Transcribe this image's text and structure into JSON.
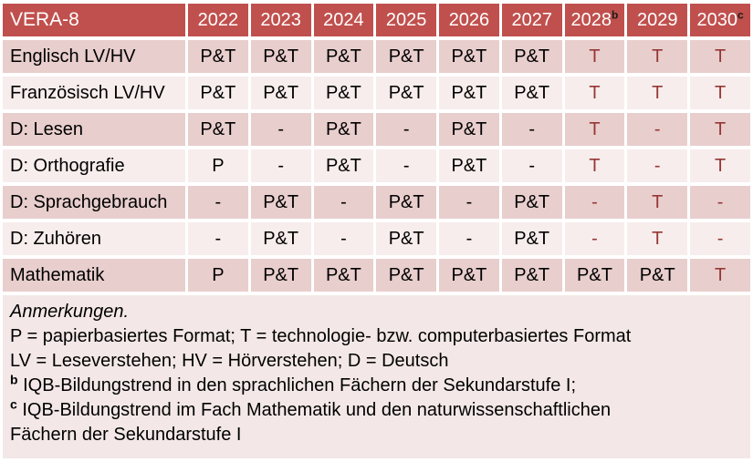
{
  "colors": {
    "header_bg": "#C0504D",
    "header_text": "#FFFFFF",
    "band_dark": "#E8CECD",
    "band_light": "#F7EDEC",
    "notes_bg": "#F3E8E7",
    "accent_text": "#953735",
    "body_text": "#000000"
  },
  "table": {
    "header": {
      "title": "VERA-8",
      "years": [
        {
          "label": "2022",
          "sup": ""
        },
        {
          "label": "2023",
          "sup": ""
        },
        {
          "label": "2024",
          "sup": ""
        },
        {
          "label": "2025",
          "sup": ""
        },
        {
          "label": "2026",
          "sup": ""
        },
        {
          "label": "2027",
          "sup": ""
        },
        {
          "label": "2028",
          "sup": "b"
        },
        {
          "label": "2029",
          "sup": ""
        },
        {
          "label": "2030",
          "sup": "c"
        }
      ]
    },
    "rows": [
      {
        "label": "Englisch LV/HV",
        "cells": [
          {
            "v": "P&T",
            "red": false
          },
          {
            "v": "P&T",
            "red": false
          },
          {
            "v": "P&T",
            "red": false
          },
          {
            "v": "P&T",
            "red": false
          },
          {
            "v": "P&T",
            "red": false
          },
          {
            "v": "P&T",
            "red": false
          },
          {
            "v": "T",
            "red": true
          },
          {
            "v": "T",
            "red": true
          },
          {
            "v": "T",
            "red": true
          }
        ]
      },
      {
        "label": "Französisch LV/HV",
        "cells": [
          {
            "v": "P&T",
            "red": false
          },
          {
            "v": "P&T",
            "red": false
          },
          {
            "v": "P&T",
            "red": false
          },
          {
            "v": "P&T",
            "red": false
          },
          {
            "v": "P&T",
            "red": false
          },
          {
            "v": "P&T",
            "red": false
          },
          {
            "v": "T",
            "red": true
          },
          {
            "v": "T",
            "red": true
          },
          {
            "v": "T",
            "red": true
          }
        ]
      },
      {
        "label": "D: Lesen",
        "cells": [
          {
            "v": "P&T",
            "red": false
          },
          {
            "v": "-",
            "red": false
          },
          {
            "v": "P&T",
            "red": false
          },
          {
            "v": "-",
            "red": false
          },
          {
            "v": "P&T",
            "red": false
          },
          {
            "v": "-",
            "red": false
          },
          {
            "v": "T",
            "red": true
          },
          {
            "v": "-",
            "red": true
          },
          {
            "v": "T",
            "red": true
          }
        ]
      },
      {
        "label": "D: Orthografie",
        "cells": [
          {
            "v": "P",
            "red": false
          },
          {
            "v": "-",
            "red": false
          },
          {
            "v": "P&T",
            "red": false
          },
          {
            "v": "-",
            "red": false
          },
          {
            "v": "P&T",
            "red": false
          },
          {
            "v": "-",
            "red": false
          },
          {
            "v": "T",
            "red": true
          },
          {
            "v": "-",
            "red": true
          },
          {
            "v": "T",
            "red": true
          }
        ]
      },
      {
        "label": "D: Sprachgebrauch",
        "cells": [
          {
            "v": "-",
            "red": false
          },
          {
            "v": "P&T",
            "red": false
          },
          {
            "v": "-",
            "red": false
          },
          {
            "v": "P&T",
            "red": false
          },
          {
            "v": "-",
            "red": false
          },
          {
            "v": "P&T",
            "red": false
          },
          {
            "v": "-",
            "red": true
          },
          {
            "v": "T",
            "red": true
          },
          {
            "v": "-",
            "red": true
          }
        ]
      },
      {
        "label": "D: Zuhören",
        "cells": [
          {
            "v": "-",
            "red": false
          },
          {
            "v": "P&T",
            "red": false
          },
          {
            "v": "-",
            "red": false
          },
          {
            "v": "P&T",
            "red": false
          },
          {
            "v": "-",
            "red": false
          },
          {
            "v": "P&T",
            "red": false
          },
          {
            "v": "-",
            "red": true
          },
          {
            "v": "T",
            "red": true
          },
          {
            "v": "-",
            "red": true
          }
        ]
      },
      {
        "label": "Mathematik",
        "cells": [
          {
            "v": "P",
            "red": false
          },
          {
            "v": "P&T",
            "red": false
          },
          {
            "v": "P&T",
            "red": false
          },
          {
            "v": "P&T",
            "red": false
          },
          {
            "v": "P&T",
            "red": false
          },
          {
            "v": "P&T",
            "red": false
          },
          {
            "v": "P&T",
            "red": false
          },
          {
            "v": "P&T",
            "red": false
          },
          {
            "v": "T",
            "red": true
          }
        ]
      }
    ]
  },
  "notes": {
    "lines": [
      {
        "sup": "",
        "text": "Anmerkungen.",
        "italic": true
      },
      {
        "sup": "",
        "text": "P = papierbasiertes Format; T = technologie- bzw. computerbasiertes Format",
        "italic": false
      },
      {
        "sup": "",
        "text": "LV = Leseverstehen; HV = Hörverstehen; D = Deutsch",
        "italic": false
      },
      {
        "sup": "b",
        "text": "IQB-Bildungstrend in den sprachlichen Fächern der Sekundarstufe I;",
        "italic": false
      },
      {
        "sup": "c",
        "text": "IQB-Bildungstrend im Fach Mathematik und den naturwissenschaftlichen Fächern der Sekundarstufe I",
        "italic": false
      }
    ]
  }
}
